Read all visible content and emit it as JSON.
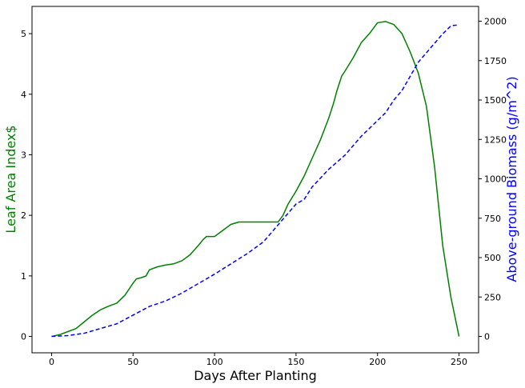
{
  "chart_data": {
    "type": "line",
    "xlabel": "Days After Planting",
    "ylabel_left": "Leaf Area Index$",
    "ylabel_right": "Above-ground Biomass (g/m^2)",
    "xlim": [
      -12,
      262
    ],
    "ylim_left": [
      -0.27,
      5.45
    ],
    "ylim_right": [
      -104,
      2094
    ],
    "x_ticks": [
      0,
      50,
      100,
      150,
      200,
      250
    ],
    "y_ticks_left": [
      0,
      1,
      2,
      3,
      4,
      5
    ],
    "y_ticks_right": [
      0,
      250,
      500,
      750,
      1000,
      1250,
      1500,
      1750,
      2000
    ],
    "grid": false,
    "legend": "none",
    "colors": {
      "lai": "#008000",
      "biomass": "#0000ff",
      "frame": "#000000"
    },
    "series": [
      {
        "axis": "left",
        "color": "#008000",
        "style": "solid",
        "x": [
          0,
          5,
          10,
          15,
          20,
          25,
          30,
          35,
          40,
          45,
          48,
          50,
          52,
          55,
          58,
          60,
          65,
          70,
          75,
          80,
          85,
          90,
          93,
          95,
          100,
          105,
          110,
          115,
          120,
          125,
          130,
          135,
          139,
          142,
          145,
          150,
          155,
          160,
          165,
          170,
          173,
          175,
          178,
          180,
          185,
          190,
          195,
          200,
          205,
          210,
          215,
          220,
          225,
          230,
          235,
          240,
          245,
          250
        ],
        "y": [
          0.0,
          0.03,
          0.08,
          0.13,
          0.24,
          0.35,
          0.44,
          0.5,
          0.55,
          0.68,
          0.8,
          0.88,
          0.95,
          0.97,
          1.0,
          1.1,
          1.15,
          1.18,
          1.2,
          1.25,
          1.35,
          1.5,
          1.6,
          1.65,
          1.65,
          1.75,
          1.85,
          1.89,
          1.89,
          1.89,
          1.89,
          1.89,
          1.89,
          2.0,
          2.18,
          2.4,
          2.65,
          2.95,
          3.25,
          3.6,
          3.85,
          4.05,
          4.3,
          4.38,
          4.6,
          4.85,
          5.0,
          5.18,
          5.2,
          5.15,
          5.0,
          4.7,
          4.35,
          3.8,
          2.8,
          1.5,
          0.65,
          0.0
        ]
      },
      {
        "axis": "right",
        "color": "#0000ff",
        "style": "dashed",
        "x": [
          0,
          10,
          20,
          30,
          40,
          50,
          60,
          70,
          80,
          90,
          100,
          110,
          120,
          130,
          140,
          150,
          155,
          160,
          170,
          180,
          190,
          200,
          205,
          210,
          215,
          220,
          225,
          230,
          235,
          240,
          245,
          248,
          250
        ],
        "y": [
          0,
          5,
          20,
          50,
          80,
          135,
          190,
          225,
          275,
          335,
          395,
          460,
          525,
          600,
          720,
          840,
          870,
          950,
          1060,
          1150,
          1270,
          1370,
          1420,
          1500,
          1560,
          1650,
          1740,
          1800,
          1860,
          1920,
          1970,
          1975,
          1975
        ]
      }
    ]
  }
}
